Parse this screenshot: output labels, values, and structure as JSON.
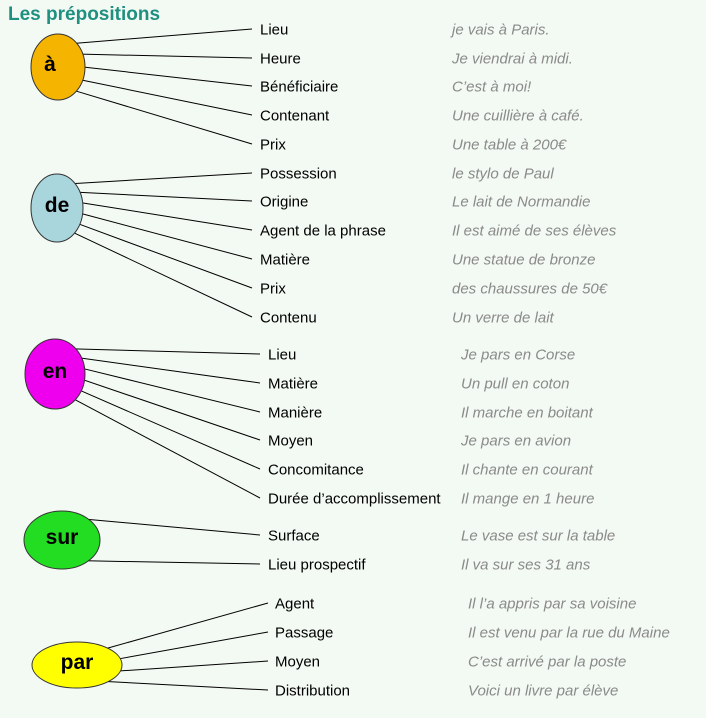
{
  "title": "Les prépositions",
  "groups": [
    {
      "preposition": "à",
      "color": "#f5b400",
      "uses": [
        {
          "label": "Lieu",
          "example": "je vais à Paris."
        },
        {
          "label": "Heure",
          "example": "Je viendrai à midi."
        },
        {
          "label": "Bénéficiaire",
          "example": "C’est à moi!"
        },
        {
          "label": "Contenant",
          "example": "Une cuillière à café."
        },
        {
          "label": "Prix",
          "example": "Une table à 200€"
        }
      ]
    },
    {
      "preposition": "de",
      "color": "#a9d5dc",
      "uses": [
        {
          "label": "Possession",
          "example": "le stylo de Paul"
        },
        {
          "label": "Origine",
          "example": "Le lait de Normandie"
        },
        {
          "label": "Agent de la phrase",
          "example": "Il est aimé de ses élèves"
        },
        {
          "label": "Matière",
          "example": "Une statue de bronze"
        },
        {
          "label": "Prix",
          "example": "des chaussures de 50€"
        },
        {
          "label": "Contenu",
          "example": "Un verre de lait"
        }
      ]
    },
    {
      "preposition": "en",
      "color": "#ee00ee",
      "uses": [
        {
          "label": "Lieu",
          "example": "Je pars en Corse"
        },
        {
          "label": "Matière",
          "example": "Un pull en coton"
        },
        {
          "label": "Manière",
          "example": "Il marche en boitant"
        },
        {
          "label": "Moyen",
          "example": "Je pars en avion"
        },
        {
          "label": "Concomitance",
          "example": "Il chante en courant"
        },
        {
          "label": "Durée d’accomplissement",
          "example": "Il mange en 1 heure"
        }
      ]
    },
    {
      "preposition": "sur",
      "color": "#22dd22",
      "uses": [
        {
          "label": "Surface",
          "example": "Le vase est sur la table"
        },
        {
          "label": "Lieu prospectif",
          "example": "Il va sur ses 31 ans"
        }
      ]
    },
    {
      "preposition": "par",
      "color": "#ffff00",
      "uses": [
        {
          "label": "Agent",
          "example": "Il l’a appris par sa voisine"
        },
        {
          "label": "Passage",
          "example": "Il est venu par la rue du Maine"
        },
        {
          "label": "Moyen",
          "example": "C’est arrivé par la poste"
        },
        {
          "label": "Distribution",
          "example": "Voici un livre par élève"
        }
      ]
    }
  ]
}
